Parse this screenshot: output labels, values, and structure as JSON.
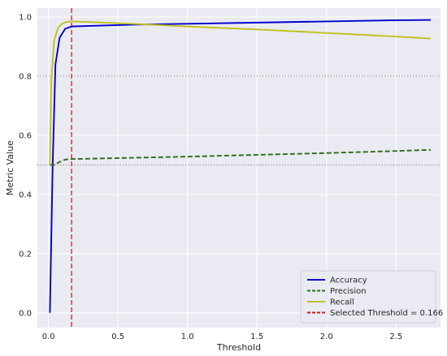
{
  "chart_data": {
    "type": "line",
    "xlabel": "Threshold",
    "ylabel": "Metric Value",
    "xlim": [
      -0.08,
      2.82
    ],
    "ylim": [
      -0.05,
      1.03
    ],
    "x_ticks": [
      0.0,
      0.5,
      1.0,
      1.5,
      2.0,
      2.5
    ],
    "x_tick_labels": [
      "0.0",
      "0.5",
      "1.0",
      "1.5",
      "2.0",
      "2.5"
    ],
    "y_ticks": [
      0.0,
      0.2,
      0.4,
      0.6,
      0.8,
      1.0
    ],
    "y_tick_labels": [
      "0.0",
      "0.2",
      "0.4",
      "0.6",
      "0.8",
      "1.0"
    ],
    "grid": true,
    "background": "#eaeaf2",
    "legend_position": "bottom-right",
    "series": [
      {
        "name": "Accuracy",
        "color": "#0000cd",
        "style": "solid",
        "x": [
          0.01,
          0.03,
          0.05,
          0.08,
          0.12,
          0.166,
          0.3,
          0.6,
          1.0,
          1.5,
          2.0,
          2.5,
          2.75
        ],
        "y": [
          0.0,
          0.5,
          0.84,
          0.93,
          0.96,
          0.968,
          0.97,
          0.974,
          0.977,
          0.981,
          0.985,
          0.989,
          0.99
        ]
      },
      {
        "name": "Precision",
        "color": "#2e6b18",
        "style": "dashed",
        "x": [
          0.01,
          0.04,
          0.08,
          0.12,
          0.166,
          0.3,
          0.6,
          1.0,
          1.5,
          2.0,
          2.5,
          2.75
        ],
        "y": [
          0.5,
          0.5,
          0.51,
          0.518,
          0.52,
          0.521,
          0.524,
          0.528,
          0.534,
          0.54,
          0.547,
          0.551
        ]
      },
      {
        "name": "Recall",
        "color": "#c0c020",
        "style": "solid",
        "x": [
          0.01,
          0.02,
          0.04,
          0.07,
          0.1,
          0.13,
          0.166,
          0.3,
          0.6,
          1.0,
          1.5,
          2.0,
          2.5,
          2.75
        ],
        "y": [
          0.5,
          0.78,
          0.92,
          0.965,
          0.978,
          0.983,
          0.985,
          0.983,
          0.977,
          0.968,
          0.958,
          0.946,
          0.934,
          0.927
        ]
      }
    ],
    "reference_lines": [
      {
        "orientation": "vertical",
        "value": 0.166,
        "color": "#d01c1c",
        "style": "dashed",
        "label": "Selected Threshold = 0.166"
      },
      {
        "orientation": "horizontal",
        "value": 0.8,
        "color": "#8a8a8a",
        "style": "dotted"
      },
      {
        "orientation": "horizontal",
        "value": 0.5,
        "color": "#8a8a8a",
        "style": "dotted"
      }
    ],
    "legend": [
      {
        "label": "Accuracy",
        "color": "#0000cd",
        "style": "solid"
      },
      {
        "label": "Precision",
        "color": "#2e6b18",
        "style": "dashed"
      },
      {
        "label": "Recall",
        "color": "#c0c020",
        "style": "solid"
      },
      {
        "label": "Selected Threshold = 0.166",
        "color": "#d01c1c",
        "style": "dashed"
      }
    ]
  }
}
